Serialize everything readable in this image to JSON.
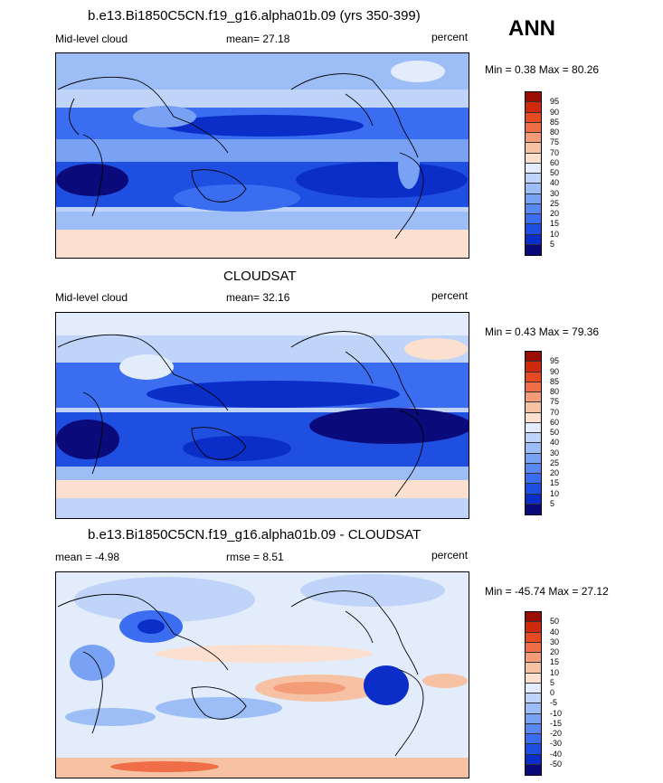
{
  "season_label": "ANN",
  "panels": [
    {
      "title": "b.e13.Bi1850C5CN.f19_g16.alpha01b.09 (yrs 350-399)",
      "left_label": "Mid-level cloud",
      "center_label": "mean=  27.18",
      "right_label": "percent",
      "minmax": "Min =   0.38 Max =  80.26",
      "colorbar_ticks": [
        "95",
        "90",
        "85",
        "80",
        "75",
        "70",
        "60",
        "50",
        "40",
        "30",
        "25",
        "20",
        "15",
        "10",
        "5"
      ]
    },
    {
      "title": "CLOUDSAT",
      "left_label": "Mid-level cloud",
      "center_label": "mean=  32.16",
      "right_label": "percent",
      "minmax": "Min =   0.43 Max =  79.36",
      "colorbar_ticks": [
        "95",
        "90",
        "85",
        "80",
        "75",
        "70",
        "60",
        "50",
        "40",
        "30",
        "25",
        "20",
        "15",
        "10",
        "5"
      ]
    },
    {
      "title": "b.e13.Bi1850C5CN.f19_g16.alpha01b.09 - CLOUDSAT",
      "left_label": "mean =  -4.98",
      "center_label": "rmse =    8.51",
      "right_label": "percent",
      "minmax": "Min = -45.74 Max =  27.12",
      "colorbar_ticks": [
        "50",
        "40",
        "30",
        "20",
        "15",
        "10",
        "5",
        "0",
        "-5",
        "-10",
        "-15",
        "-20",
        "-30",
        "-40",
        "-50"
      ]
    }
  ],
  "colors": {
    "abs_scale": [
      "#0a0a7a",
      "#0b2ec8",
      "#1f4fe0",
      "#3a6df0",
      "#5a88f2",
      "#7aa2f4",
      "#9dbdf6",
      "#bfd4f8",
      "#e2ecfb",
      "#fbe0cf",
      "#f7c2a4",
      "#f49c78",
      "#ef6e47",
      "#e64a22",
      "#cf2a0b",
      "#9a0e05"
    ],
    "diff_scale": [
      "#0a0a7a",
      "#0b2ec8",
      "#1f4fe0",
      "#3a6df0",
      "#5a88f2",
      "#7aa2f4",
      "#9dbdf6",
      "#bfd4f8",
      "#e2ecfb",
      "#fbe0cf",
      "#f7c2a4",
      "#f49c78",
      "#ef6e47",
      "#e64a22",
      "#cf2a0b",
      "#9a0e05"
    ]
  }
}
